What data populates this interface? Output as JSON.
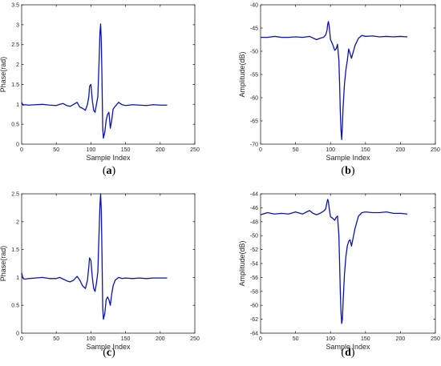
{
  "colors": {
    "line": "#0a12b8",
    "axis": "#262626",
    "background": "#ffffff"
  },
  "chart_data": [
    {
      "id": "a",
      "type": "line",
      "caption": "a",
      "xlabel": "Sample Index",
      "ylabel": "Phase(rad)",
      "xlim": [
        0,
        250
      ],
      "ylim": [
        0,
        3.5
      ],
      "xticks": [
        0,
        50,
        100,
        150,
        200,
        250
      ],
      "yticks": [
        0,
        0.5,
        1,
        1.5,
        2,
        2.5,
        3,
        3.5
      ],
      "grid": false,
      "x": [
        0,
        2,
        5,
        10,
        20,
        30,
        40,
        50,
        55,
        60,
        65,
        70,
        75,
        80,
        84,
        88,
        92,
        95,
        97,
        98,
        100,
        102,
        104,
        106,
        108,
        110,
        112,
        113,
        114,
        115,
        116,
        117,
        118,
        120,
        122,
        124,
        126,
        128,
        130,
        132,
        135,
        140,
        145,
        150,
        160,
        170,
        180,
        190,
        200,
        210
      ],
      "values": [
        1.05,
        0.98,
        0.99,
        0.98,
        0.99,
        1.0,
        0.98,
        0.97,
        1.0,
        1.02,
        0.97,
        0.95,
        1.0,
        1.05,
        0.93,
        0.9,
        0.85,
        1.0,
        1.2,
        1.45,
        1.5,
        1.1,
        0.85,
        0.8,
        1.0,
        1.2,
        2.2,
        2.8,
        3.02,
        2.6,
        1.6,
        0.4,
        0.15,
        0.3,
        0.6,
        0.75,
        0.8,
        0.4,
        0.6,
        0.88,
        0.95,
        1.05,
        0.99,
        0.97,
        0.99,
        0.98,
        0.97,
        0.99,
        0.98,
        0.98
      ]
    },
    {
      "id": "b",
      "type": "line",
      "caption": "b",
      "xlabel": "Sample Index",
      "ylabel": "Amplitude(dB)",
      "xlim": [
        0,
        250
      ],
      "ylim": [
        -70,
        -40
      ],
      "xticks": [
        0,
        50,
        100,
        150,
        200,
        250
      ],
      "yticks": [
        -70,
        -65,
        -60,
        -55,
        -50,
        -45,
        -40
      ],
      "grid": false,
      "x": [
        0,
        10,
        20,
        30,
        40,
        50,
        60,
        70,
        80,
        85,
        90,
        93,
        95,
        96,
        97,
        98,
        100,
        103,
        106,
        108,
        110,
        112,
        113,
        114,
        115,
        116,
        117,
        118,
        120,
        122,
        124,
        126,
        128,
        130,
        135,
        140,
        145,
        150,
        160,
        170,
        180,
        190,
        200,
        210
      ],
      "values": [
        -47,
        -47,
        -46.8,
        -47,
        -47,
        -46.9,
        -47,
        -46.8,
        -47.5,
        -47.2,
        -47,
        -46.5,
        -45.5,
        -44.2,
        -43.6,
        -44.5,
        -47.5,
        -48.5,
        -49.8,
        -49.5,
        -48.5,
        -52,
        -57,
        -63,
        -67,
        -69,
        -66,
        -62,
        -57,
        -54,
        -52,
        -49.5,
        -50.5,
        -51.5,
        -48.8,
        -47.2,
        -46.6,
        -46.8,
        -46.7,
        -46.9,
        -46.8,
        -46.9,
        -46.8,
        -46.9
      ]
    },
    {
      "id": "c",
      "type": "line",
      "caption": "c",
      "xlabel": "Sample Index",
      "ylabel": "Phase(rad)",
      "xlim": [
        0,
        250
      ],
      "ylim": [
        0,
        2.5
      ],
      "xticks": [
        0,
        50,
        100,
        150,
        200,
        250
      ],
      "yticks": [
        0,
        0.5,
        1,
        1.5,
        2,
        2.5
      ],
      "grid": false,
      "x": [
        0,
        2,
        5,
        10,
        20,
        30,
        40,
        50,
        55,
        60,
        65,
        70,
        75,
        80,
        84,
        88,
        92,
        95,
        97,
        98,
        100,
        102,
        104,
        106,
        108,
        110,
        112,
        113,
        114,
        115,
        116,
        117,
        118,
        120,
        122,
        124,
        126,
        128,
        130,
        132,
        135,
        140,
        145,
        150,
        160,
        170,
        180,
        190,
        200,
        210
      ],
      "values": [
        1.08,
        0.98,
        0.97,
        0.98,
        0.99,
        1.0,
        0.98,
        0.98,
        1.0,
        0.97,
        0.94,
        0.92,
        0.95,
        1.02,
        0.95,
        0.85,
        0.8,
        0.95,
        1.2,
        1.35,
        1.3,
        1.0,
        0.8,
        0.75,
        0.9,
        1.1,
        1.9,
        2.3,
        2.5,
        2.2,
        1.4,
        0.45,
        0.25,
        0.35,
        0.6,
        0.65,
        0.6,
        0.5,
        0.7,
        0.85,
        0.95,
        1.0,
        0.98,
        0.99,
        0.98,
        0.99,
        0.98,
        0.99,
        0.99,
        0.99
      ]
    },
    {
      "id": "d",
      "type": "line",
      "caption": "d",
      "xlabel": "Sample Index",
      "ylabel": "Amplitude(dB)",
      "xlim": [
        0,
        250
      ],
      "ylim": [
        -64,
        -44
      ],
      "xticks": [
        0,
        50,
        100,
        150,
        200,
        250
      ],
      "yticks": [
        -64,
        -62,
        -60,
        -58,
        -56,
        -54,
        -52,
        -50,
        -48,
        -46,
        -44
      ],
      "grid": false,
      "x": [
        0,
        10,
        20,
        30,
        40,
        50,
        60,
        70,
        75,
        80,
        85,
        90,
        93,
        95,
        96,
        97,
        98,
        100,
        103,
        106,
        108,
        110,
        112,
        113,
        114,
        115,
        116,
        117,
        118,
        120,
        122,
        124,
        126,
        128,
        130,
        135,
        140,
        145,
        150,
        160,
        170,
        180,
        190,
        200,
        210
      ],
      "values": [
        -47,
        -46.7,
        -46.9,
        -46.8,
        -46.9,
        -46.6,
        -46.9,
        -46.4,
        -46.8,
        -47.0,
        -46.8,
        -46.5,
        -46.2,
        -45.2,
        -44.8,
        -45.1,
        -46.0,
        -47.3,
        -47.5,
        -47.8,
        -47.4,
        -47.2,
        -50.0,
        -54.0,
        -58.0,
        -61.0,
        -62.6,
        -62.0,
        -59.5,
        -55.5,
        -53.0,
        -51.5,
        -50.8,
        -50.6,
        -51.5,
        -49.0,
        -47.2,
        -46.7,
        -46.6,
        -46.7,
        -46.7,
        -46.6,
        -46.8,
        -46.8,
        -46.9
      ]
    }
  ]
}
